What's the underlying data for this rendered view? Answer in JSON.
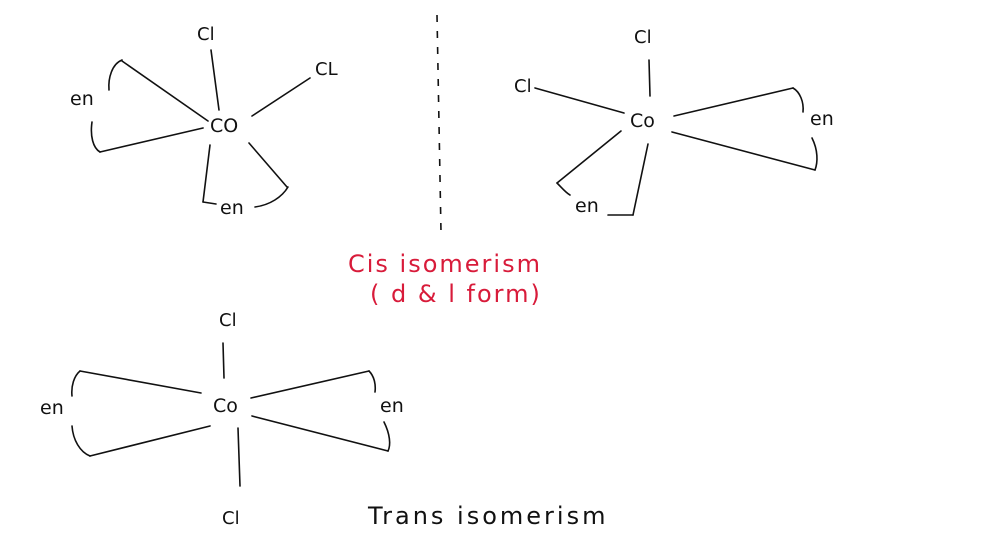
{
  "cis_left": {
    "metal": "CO",
    "cl_top": "Cl",
    "cl_right": "CL",
    "en_left": "en",
    "en_bottom": "en"
  },
  "cis_right": {
    "metal": "Co",
    "cl_top": "Cl",
    "cl_left": "Cl",
    "en_right": "en",
    "en_bottom": "en"
  },
  "trans": {
    "metal": "Co",
    "cl_top": "Cl",
    "cl_bottom": "Cl",
    "en_left": "en",
    "en_right": "en"
  },
  "labels": {
    "cis_line1": "Cis isomerism",
    "cis_line2": "( d & l form)",
    "trans_caption": "Trans isomerism"
  },
  "colors": {
    "ink": "#111111",
    "annotation_red": "#d81b3a"
  }
}
